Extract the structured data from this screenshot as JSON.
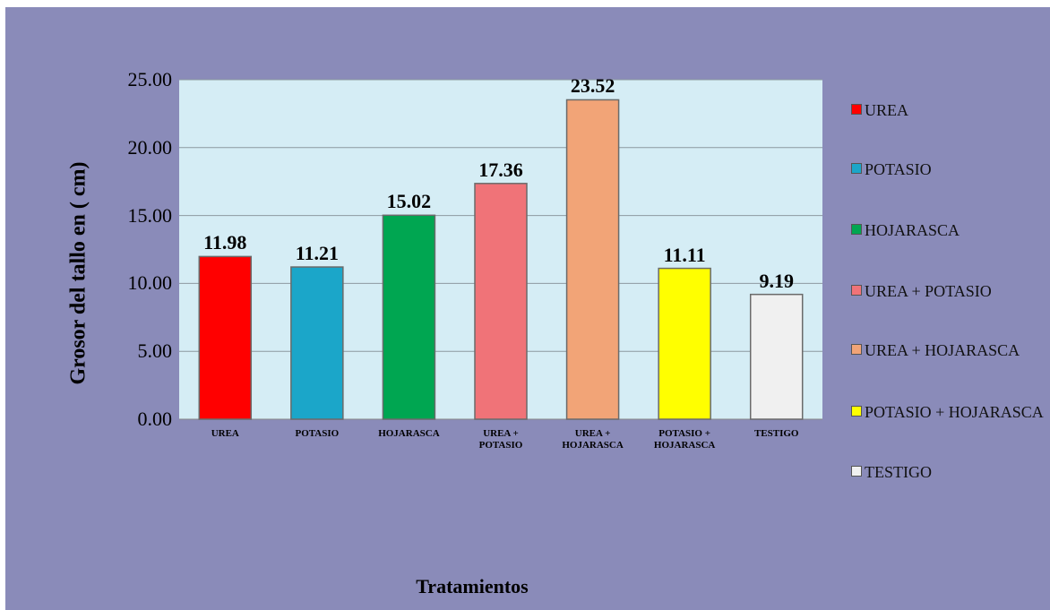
{
  "chart_data": {
    "type": "bar",
    "y_label": "Grosor del tallo en ( cm)",
    "x_label": "Tratamientos",
    "categories": [
      "UREA",
      "POTASIO",
      "HOJARASCA",
      "UREA + POTASIO",
      "UREA + HOJARASCA",
      "POTASIO + HOJARASCA",
      "TESTIGO"
    ],
    "values": [
      11.98,
      11.21,
      15.02,
      17.36,
      23.52,
      11.11,
      9.19
    ],
    "colors": [
      "#ff0000",
      "#1ba6c9",
      "#00a651",
      "#f07378",
      "#f2a477",
      "#ffff00",
      "#f0f0f0"
    ],
    "ylim": [
      0,
      25
    ],
    "yticks": [
      {
        "value": 0,
        "label": "0.00"
      },
      {
        "value": 5,
        "label": "5.00"
      },
      {
        "value": 10,
        "label": "10.00"
      },
      {
        "value": 15,
        "label": "15.00"
      },
      {
        "value": 20,
        "label": "20.00"
      },
      {
        "value": 25,
        "label": "25.00"
      }
    ],
    "grid": true,
    "legend": "right"
  }
}
